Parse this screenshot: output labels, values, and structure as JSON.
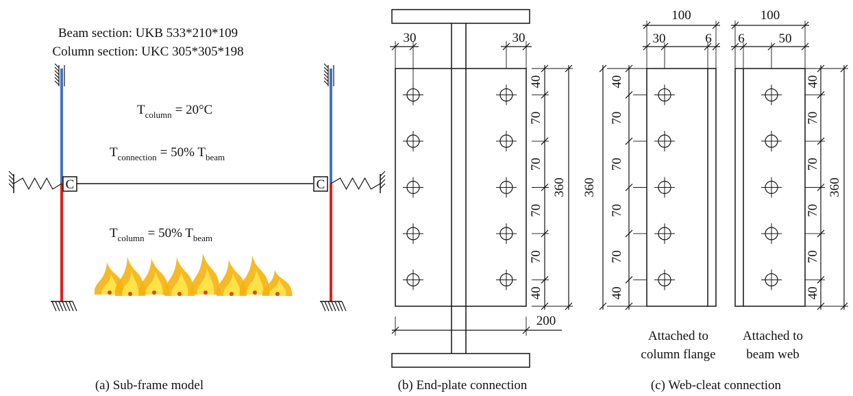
{
  "panel_a": {
    "beam_section": "Beam section: UKB 533*210*109",
    "column_section": "Column section: UKC 305*305*198",
    "t_column_top": {
      "symbol": "T",
      "subscript": "column",
      "expression": "= 20°C"
    },
    "t_connection": {
      "symbol": "T",
      "subscript": "connection",
      "expression": "= 50% T",
      "ref_subscript": "beam"
    },
    "t_column_bottom": {
      "symbol": "T",
      "subscript": "column",
      "expression": "= 50% T",
      "ref_subscript": "beam"
    },
    "connection_labels": [
      "C",
      "C"
    ],
    "caption": "(a) Sub-frame model"
  },
  "panel_b": {
    "edge_dims": [
      30,
      30
    ],
    "hole_spacing": [
      40,
      70,
      70,
      70,
      70,
      40
    ],
    "plate_height": 360,
    "plate_width": 200,
    "caption": "(b) End-plate connection"
  },
  "panel_c": {
    "column_flange_cleat": {
      "width": 100,
      "part_widths": [
        30,
        6
      ],
      "hole_spacing": [
        40,
        70,
        70,
        70,
        70,
        40
      ],
      "height": 360,
      "label": [
        "Attached to",
        "column flange"
      ]
    },
    "beam_web_cleat": {
      "width": 100,
      "part_widths": [
        6,
        50
      ],
      "hole_spacing": [
        40,
        70,
        70,
        70,
        70,
        40
      ],
      "height": 360,
      "label": [
        "Attached to",
        "beam web"
      ]
    },
    "caption": "(c) Web-cleat connection"
  }
}
